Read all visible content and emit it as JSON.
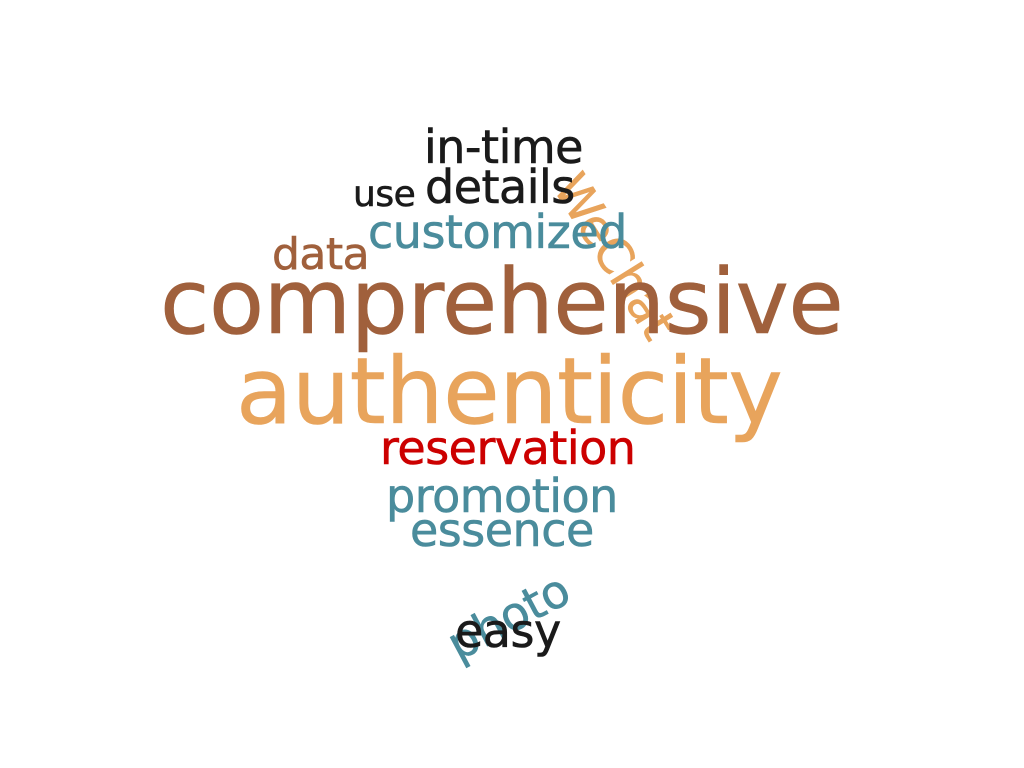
{
  "words": {
    "comprehensive": "comprehensive",
    "authenticity": "authenticity",
    "reservation": "reservation",
    "promotion": "promotion",
    "essence": "essence",
    "photo": "photo",
    "easy": "easy",
    "data": "data",
    "customized": "customized",
    "use": "use",
    "details": "details",
    "in_time": "in-time",
    "wechat": "WeChat"
  },
  "colors": {
    "brown": "#a0603c",
    "tan": "#e8a45c",
    "red": "#cc0000",
    "teal": "#4a8c9c",
    "black": "#1a1a1a"
  }
}
